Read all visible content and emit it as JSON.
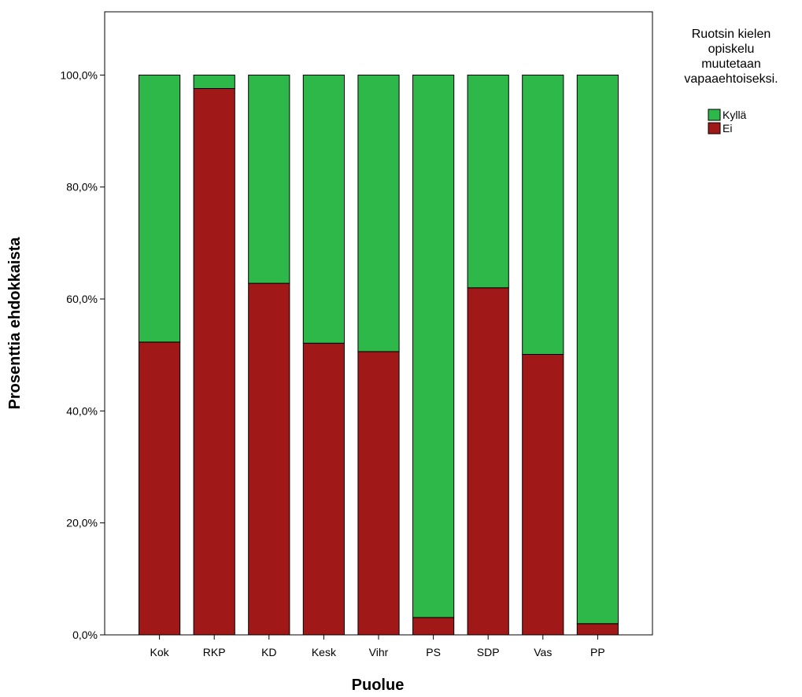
{
  "chart_data": {
    "type": "bar",
    "stacked": true,
    "categories": [
      "Kok",
      "RKP",
      "KD",
      "Kesk",
      "Vihr",
      "PS",
      "SDP",
      "Vas",
      "PP"
    ],
    "series": [
      {
        "name": "Ei",
        "color": "#a01818",
        "values": [
          52.3,
          97.6,
          62.8,
          52.1,
          50.6,
          3.1,
          62.0,
          50.1,
          2.0
        ]
      },
      {
        "name": "Kyllä",
        "color": "#2eb84a",
        "values": [
          47.7,
          2.4,
          37.2,
          47.9,
          49.4,
          96.9,
          38.0,
          49.9,
          98.0
        ]
      }
    ],
    "ylim": [
      0,
      111.3
    ],
    "yticks": [
      "0,0%",
      "20,0%",
      "40,0%",
      "60,0%",
      "80,0%",
      "100,0%"
    ],
    "ytick_values": [
      0,
      20,
      40,
      60,
      80,
      100
    ],
    "xlabel": "Puolue",
    "ylabel": "Prosenttia ehdokkaista",
    "legend": {
      "title_lines": [
        "Ruotsin kielen",
        "opiskelu",
        "muutetaan",
        "vapaaehtoiseksi."
      ],
      "entries": [
        "Kyllä",
        "Ei"
      ],
      "placement": "right"
    },
    "grid": false
  }
}
